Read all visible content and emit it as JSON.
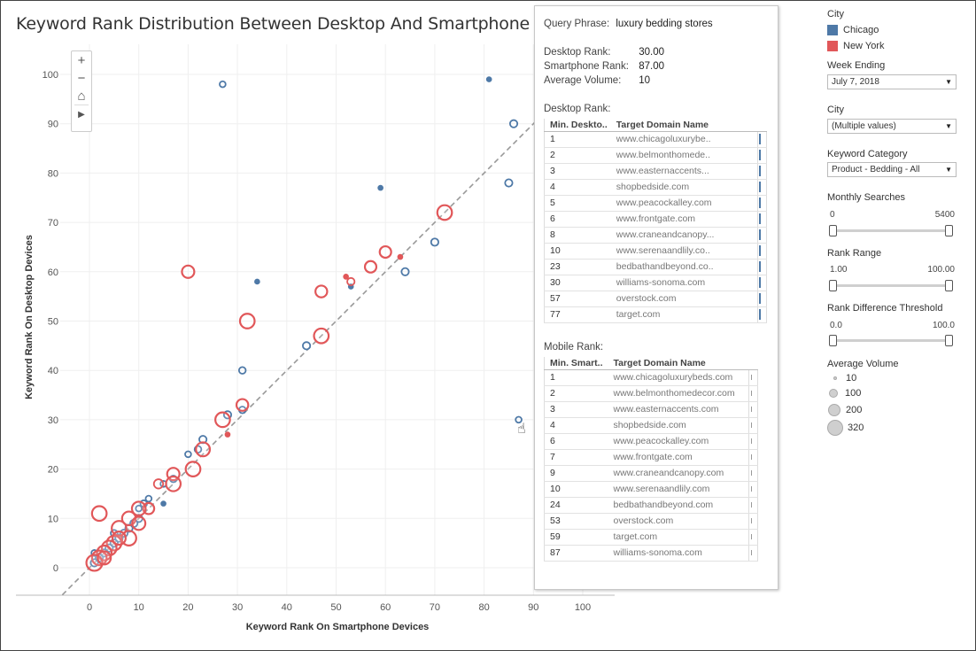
{
  "title": "Keyword Rank Distribution Between Desktop And Smartphone Devices",
  "chart_data": {
    "type": "scatter",
    "title": "Keyword Rank Distribution Between Desktop And Smartphone Devices",
    "xlabel": "Keyword Rank On Smartphone Devices",
    "ylabel": "Keyword Rank On Desktop Devices",
    "xlim": [
      -5,
      107
    ],
    "ylim": [
      -5,
      107
    ],
    "xticks": [
      0,
      10,
      20,
      30,
      40,
      50,
      60,
      70,
      80,
      90,
      100
    ],
    "yticks": [
      0,
      10,
      20,
      30,
      40,
      50,
      60,
      70,
      80,
      90,
      100
    ],
    "reference_line": "y = x (dashed)",
    "series": [
      {
        "name": "Chicago",
        "color": "#4e79a7",
        "points": [
          {
            "x": 27,
            "y": 98,
            "vol": 20
          },
          {
            "x": 81,
            "y": 99,
            "vol": 10
          },
          {
            "x": 86,
            "y": 90,
            "vol": 40
          },
          {
            "x": 59,
            "y": 77,
            "vol": 10
          },
          {
            "x": 85,
            "y": 78,
            "vol": 40
          },
          {
            "x": 70,
            "y": 66,
            "vol": 40
          },
          {
            "x": 64,
            "y": 60,
            "vol": 40
          },
          {
            "x": 34,
            "y": 58,
            "vol": 10
          },
          {
            "x": 53,
            "y": 57,
            "vol": 10
          },
          {
            "x": 44,
            "y": 45,
            "vol": 40
          },
          {
            "x": 31,
            "y": 40,
            "vol": 30
          },
          {
            "x": 87,
            "y": 30,
            "vol": 20
          },
          {
            "x": 28,
            "y": 31,
            "vol": 40
          },
          {
            "x": 31,
            "y": 32,
            "vol": 30
          },
          {
            "x": 23,
            "y": 26,
            "vol": 40
          },
          {
            "x": 22,
            "y": 24,
            "vol": 30
          },
          {
            "x": 20,
            "y": 23,
            "vol": 20
          },
          {
            "x": 17,
            "y": 18,
            "vol": 30
          },
          {
            "x": 15,
            "y": 17,
            "vol": 20
          },
          {
            "x": 15,
            "y": 13,
            "vol": 10
          },
          {
            "x": 12,
            "y": 14,
            "vol": 20
          },
          {
            "x": 11,
            "y": 13,
            "vol": 30
          },
          {
            "x": 10,
            "y": 10,
            "vol": 40
          },
          {
            "x": 9,
            "y": 9,
            "vol": 40
          },
          {
            "x": 8,
            "y": 8,
            "vol": 40
          },
          {
            "x": 7,
            "y": 7,
            "vol": 40
          },
          {
            "x": 6,
            "y": 6,
            "vol": 40
          },
          {
            "x": 5,
            "y": 5,
            "vol": 40
          },
          {
            "x": 4,
            "y": 4,
            "vol": 40
          },
          {
            "x": 3,
            "y": 3,
            "vol": 40
          },
          {
            "x": 2,
            "y": 2,
            "vol": 40
          },
          {
            "x": 1,
            "y": 1,
            "vol": 40
          },
          {
            "x": 1,
            "y": 3,
            "vol": 20
          },
          {
            "x": 10,
            "y": 12,
            "vol": 20
          },
          {
            "x": 5,
            "y": 7,
            "vol": 30
          }
        ]
      },
      {
        "name": "New York",
        "color": "#e15759",
        "points": [
          {
            "x": 72,
            "y": 72,
            "vol": 260
          },
          {
            "x": 60,
            "y": 64,
            "vol": 140
          },
          {
            "x": 57,
            "y": 61,
            "vol": 140
          },
          {
            "x": 20,
            "y": 60,
            "vol": 170
          },
          {
            "x": 47,
            "y": 56,
            "vol": 150
          },
          {
            "x": 52,
            "y": 59,
            "vol": 10
          },
          {
            "x": 53,
            "y": 58,
            "vol": 40
          },
          {
            "x": 63,
            "y": 63,
            "vol": 10
          },
          {
            "x": 32,
            "y": 50,
            "vol": 260
          },
          {
            "x": 47,
            "y": 47,
            "vol": 260
          },
          {
            "x": 31,
            "y": 33,
            "vol": 150
          },
          {
            "x": 27,
            "y": 30,
            "vol": 260
          },
          {
            "x": 28,
            "y": 27,
            "vol": 10
          },
          {
            "x": 23,
            "y": 24,
            "vol": 230
          },
          {
            "x": 21,
            "y": 20,
            "vol": 260
          },
          {
            "x": 17,
            "y": 19,
            "vol": 170
          },
          {
            "x": 17,
            "y": 17,
            "vol": 260
          },
          {
            "x": 14,
            "y": 17,
            "vol": 80
          },
          {
            "x": 12,
            "y": 12,
            "vol": 130
          },
          {
            "x": 2,
            "y": 11,
            "vol": 260
          },
          {
            "x": 10,
            "y": 12,
            "vol": 220
          },
          {
            "x": 8,
            "y": 10,
            "vol": 220
          },
          {
            "x": 10,
            "y": 9,
            "vol": 200
          },
          {
            "x": 8,
            "y": 6,
            "vol": 260
          },
          {
            "x": 6,
            "y": 8,
            "vol": 260
          },
          {
            "x": 5,
            "y": 5,
            "vol": 260
          },
          {
            "x": 4,
            "y": 4,
            "vol": 260
          },
          {
            "x": 3,
            "y": 3,
            "vol": 260
          },
          {
            "x": 2,
            "y": 2,
            "vol": 260
          },
          {
            "x": 1,
            "y": 1,
            "vol": 320
          },
          {
            "x": 6,
            "y": 6,
            "vol": 200
          },
          {
            "x": 3,
            "y": 2,
            "vol": 200
          }
        ]
      }
    ]
  },
  "map_controls": {
    "zoom_in": "+",
    "zoom_out": "−",
    "home": "⌂",
    "expand": "▶"
  },
  "tooltip": {
    "query_label": "Query Phrase:",
    "query_value": "luxury bedding stores",
    "desktop_rank_label": "Desktop Rank:",
    "desktop_rank_value": "30.00",
    "smartphone_rank_label": "Smartphone Rank:",
    "smartphone_rank_value": "87.00",
    "avg_volume_label": "Average Volume:",
    "avg_volume_value": "10",
    "desktop_section": "Desktop Rank:",
    "desktop_table": {
      "col1": "Min. Deskto..",
      "col2": "Target Domain Name",
      "rows": [
        {
          "rank": "1",
          "domain": "www.chicagoluxurybe.."
        },
        {
          "rank": "2",
          "domain": "www.belmonthomede.."
        },
        {
          "rank": "3",
          "domain": "www.easternaccents..."
        },
        {
          "rank": "4",
          "domain": "shopbedside.com"
        },
        {
          "rank": "5",
          "domain": "www.peacockalley.com"
        },
        {
          "rank": "6",
          "domain": "www.frontgate.com"
        },
        {
          "rank": "8",
          "domain": "www.craneandcanopy..."
        },
        {
          "rank": "10",
          "domain": "www.serenaandlily.co.."
        },
        {
          "rank": "23",
          "domain": "bedbathandbeyond.co.."
        },
        {
          "rank": "30",
          "domain": "williams-sonoma.com"
        },
        {
          "rank": "57",
          "domain": "overstock.com"
        },
        {
          "rank": "77",
          "domain": "target.com"
        }
      ]
    },
    "mobile_section": "Mobile Rank:",
    "mobile_table": {
      "col1": "Min. Smart..",
      "col2": "Target Domain Name",
      "rows": [
        {
          "rank": "1",
          "domain": "www.chicagoluxurybeds.com"
        },
        {
          "rank": "2",
          "domain": "www.belmonthomedecor.com"
        },
        {
          "rank": "3",
          "domain": "www.easternaccents.com"
        },
        {
          "rank": "4",
          "domain": "shopbedside.com"
        },
        {
          "rank": "6",
          "domain": "www.peacockalley.com"
        },
        {
          "rank": "7",
          "domain": "www.frontgate.com"
        },
        {
          "rank": "9",
          "domain": "www.craneandcanopy.com"
        },
        {
          "rank": "10",
          "domain": "www.serenaandlily.com"
        },
        {
          "rank": "24",
          "domain": "bedbathandbeyond.com"
        },
        {
          "rank": "53",
          "domain": "overstock.com"
        },
        {
          "rank": "59",
          "domain": "target.com"
        },
        {
          "rank": "87",
          "domain": "williams-sonoma.com"
        }
      ]
    }
  },
  "panel": {
    "city_legend_title": "City",
    "city_legend": [
      {
        "label": "Chicago",
        "color": "#4e79a7"
      },
      {
        "label": "New York",
        "color": "#e15759"
      }
    ],
    "week_ending_title": "Week Ending",
    "week_ending_value": "July 7, 2018",
    "city_filter_title": "City",
    "city_filter_value": "(Multiple values)",
    "keyword_category_title": "Keyword Category",
    "keyword_category_value": "Product - Bedding - All",
    "monthly_searches_title": "Monthly Searches",
    "monthly_searches_min": "0",
    "monthly_searches_max": "5400",
    "rank_range_title": "Rank Range",
    "rank_range_min": "1.00",
    "rank_range_max": "100.00",
    "rank_diff_title": "Rank Difference Threshold",
    "rank_diff_min": "0.0",
    "rank_diff_max": "100.0",
    "avg_volume_title": "Average Volume",
    "avg_volume_legend": [
      "10",
      "100",
      "200",
      "320"
    ]
  }
}
